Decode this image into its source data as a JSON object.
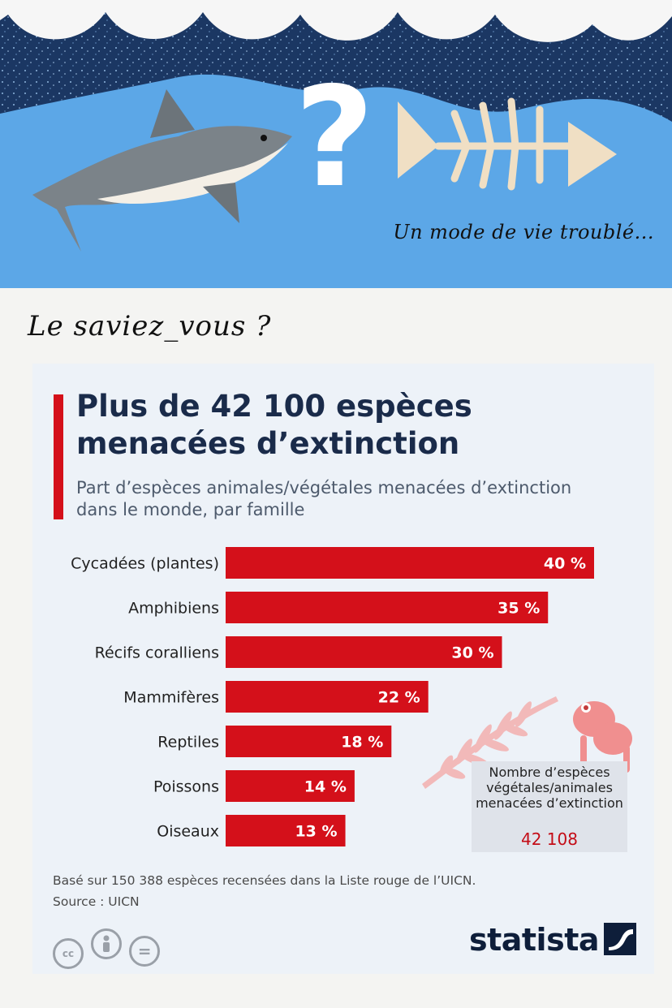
{
  "banner": {
    "tagline": "Un mode de vie troublé...",
    "question_mark": "?"
  },
  "intro": {
    "heading": "Le saviez_vous ?"
  },
  "colors": {
    "accent": "#d4101a",
    "title": "#1a2b4a",
    "sea": "#5aa6e6",
    "deep_sea": "#1d3a66"
  },
  "chart_data": {
    "type": "bar",
    "orientation": "horizontal",
    "title": "Plus de 42 100 espèces menacées d’extinction",
    "subtitle": "Part d’espèces animales/végétales menacées d’extinction dans le monde, par famille",
    "categories": [
      "Cycadées (plantes)",
      "Amphibiens",
      "Récifs coralliens",
      "Mammifères",
      "Reptiles",
      "Poissons",
      "Oiseaux"
    ],
    "values": [
      40,
      35,
      30,
      22,
      18,
      14,
      13
    ],
    "value_labels": [
      "40 %",
      "35 %",
      "30 %",
      "22 %",
      "18 %",
      "14 %",
      "13 %"
    ],
    "unit": "%",
    "bar_color": "#d4101a",
    "xlim": [
      0,
      40
    ],
    "grid": false,
    "legend": "none"
  },
  "callout": {
    "text": "Nombre d’espèces végétales/animales menacées d’extinction",
    "value": "42 108"
  },
  "footnote": {
    "basis": "Basé sur 150 388 espèces recensées dans la Liste rouge de l’UICN.",
    "source": "Source : UICN"
  },
  "license_icons": [
    "cc",
    "attribution-icon",
    "no-derivatives-icon"
  ],
  "license_labels": {
    "cc": "cc",
    "nd": "="
  },
  "brand": {
    "name": "statista"
  }
}
